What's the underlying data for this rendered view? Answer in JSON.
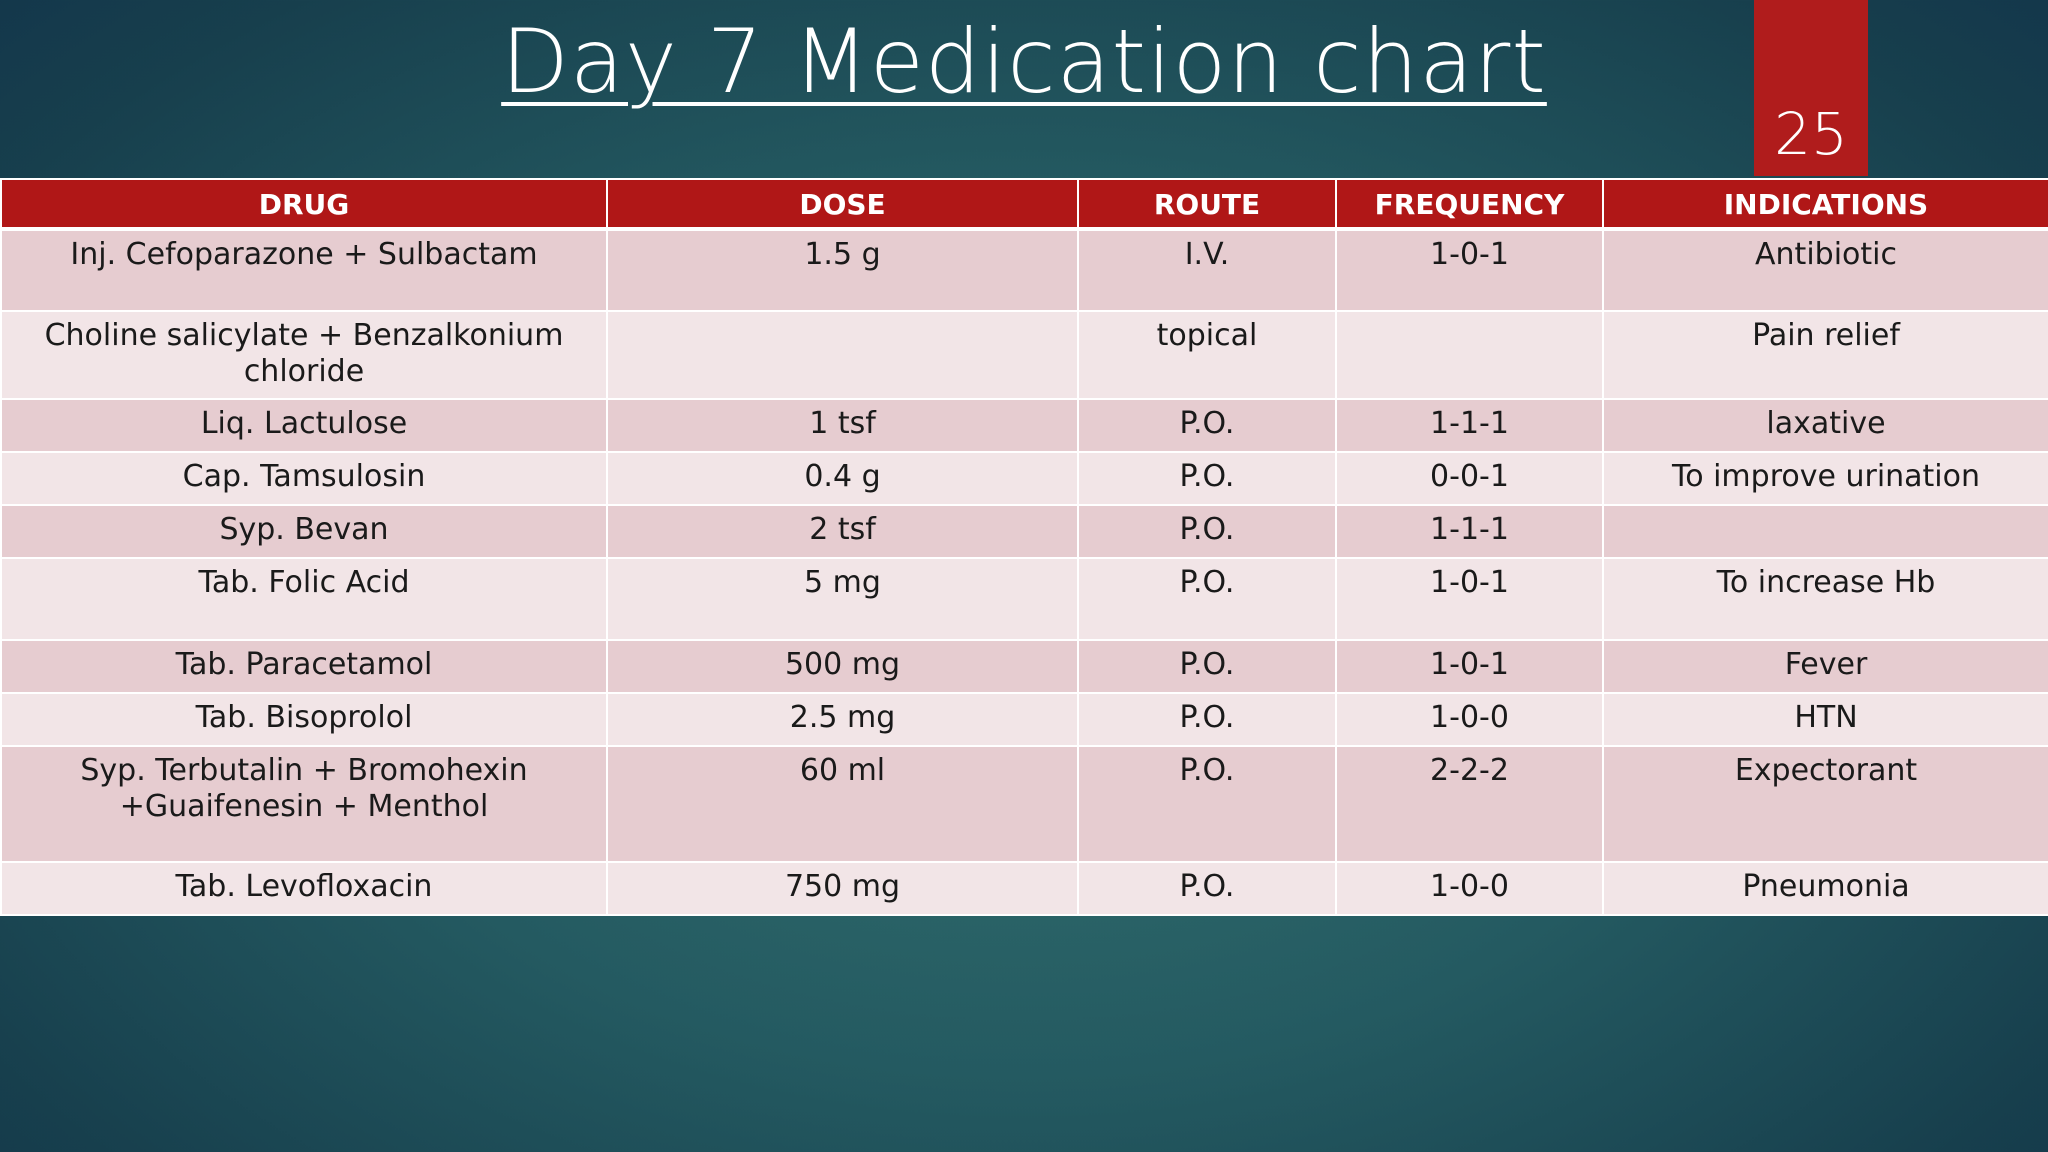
{
  "title": "Day 7 Medication chart",
  "page_number": "25",
  "table": {
    "headers": [
      "DRUG",
      "DOSE",
      "ROUTE",
      "FREQUENCY",
      "INDICATIONS"
    ],
    "rows": [
      [
        "Inj. Cefoparazone + Sulbactam",
        "1.5 g",
        "I.V.",
        "1-0-1",
        "Antibiotic"
      ],
      [
        "Choline salicylate + Benzalkonium chloride",
        "",
        "topical",
        "",
        "Pain relief"
      ],
      [
        "Liq. Lactulose",
        "1 tsf",
        "P.O.",
        "1-1-1",
        "laxative"
      ],
      [
        "Cap. Tamsulosin",
        "0.4 g",
        "P.O.",
        "0-0-1",
        "To improve urination"
      ],
      [
        "Syp. Bevan",
        "2 tsf",
        "P.O.",
        "1-1-1",
        ""
      ],
      [
        "Tab. Folic Acid",
        "5 mg",
        "P.O.",
        "1-0-1",
        "To increase Hb"
      ],
      [
        "Tab. Paracetamol",
        "500 mg",
        "P.O.",
        "1-0-1",
        "Fever"
      ],
      [
        "Tab. Bisoprolol",
        "2.5 mg",
        "P.O.",
        "1-0-0",
        "HTN"
      ],
      [
        "Syp. Terbutalin + Bromohexin +Guaifenesin + Menthol",
        "60 ml",
        "P.O.",
        "2-2-2",
        "Expectorant"
      ],
      [
        "Tab. Levofloxacin",
        "750 mg",
        "P.O.",
        "1-0-0",
        "Pneumonia"
      ]
    ]
  }
}
